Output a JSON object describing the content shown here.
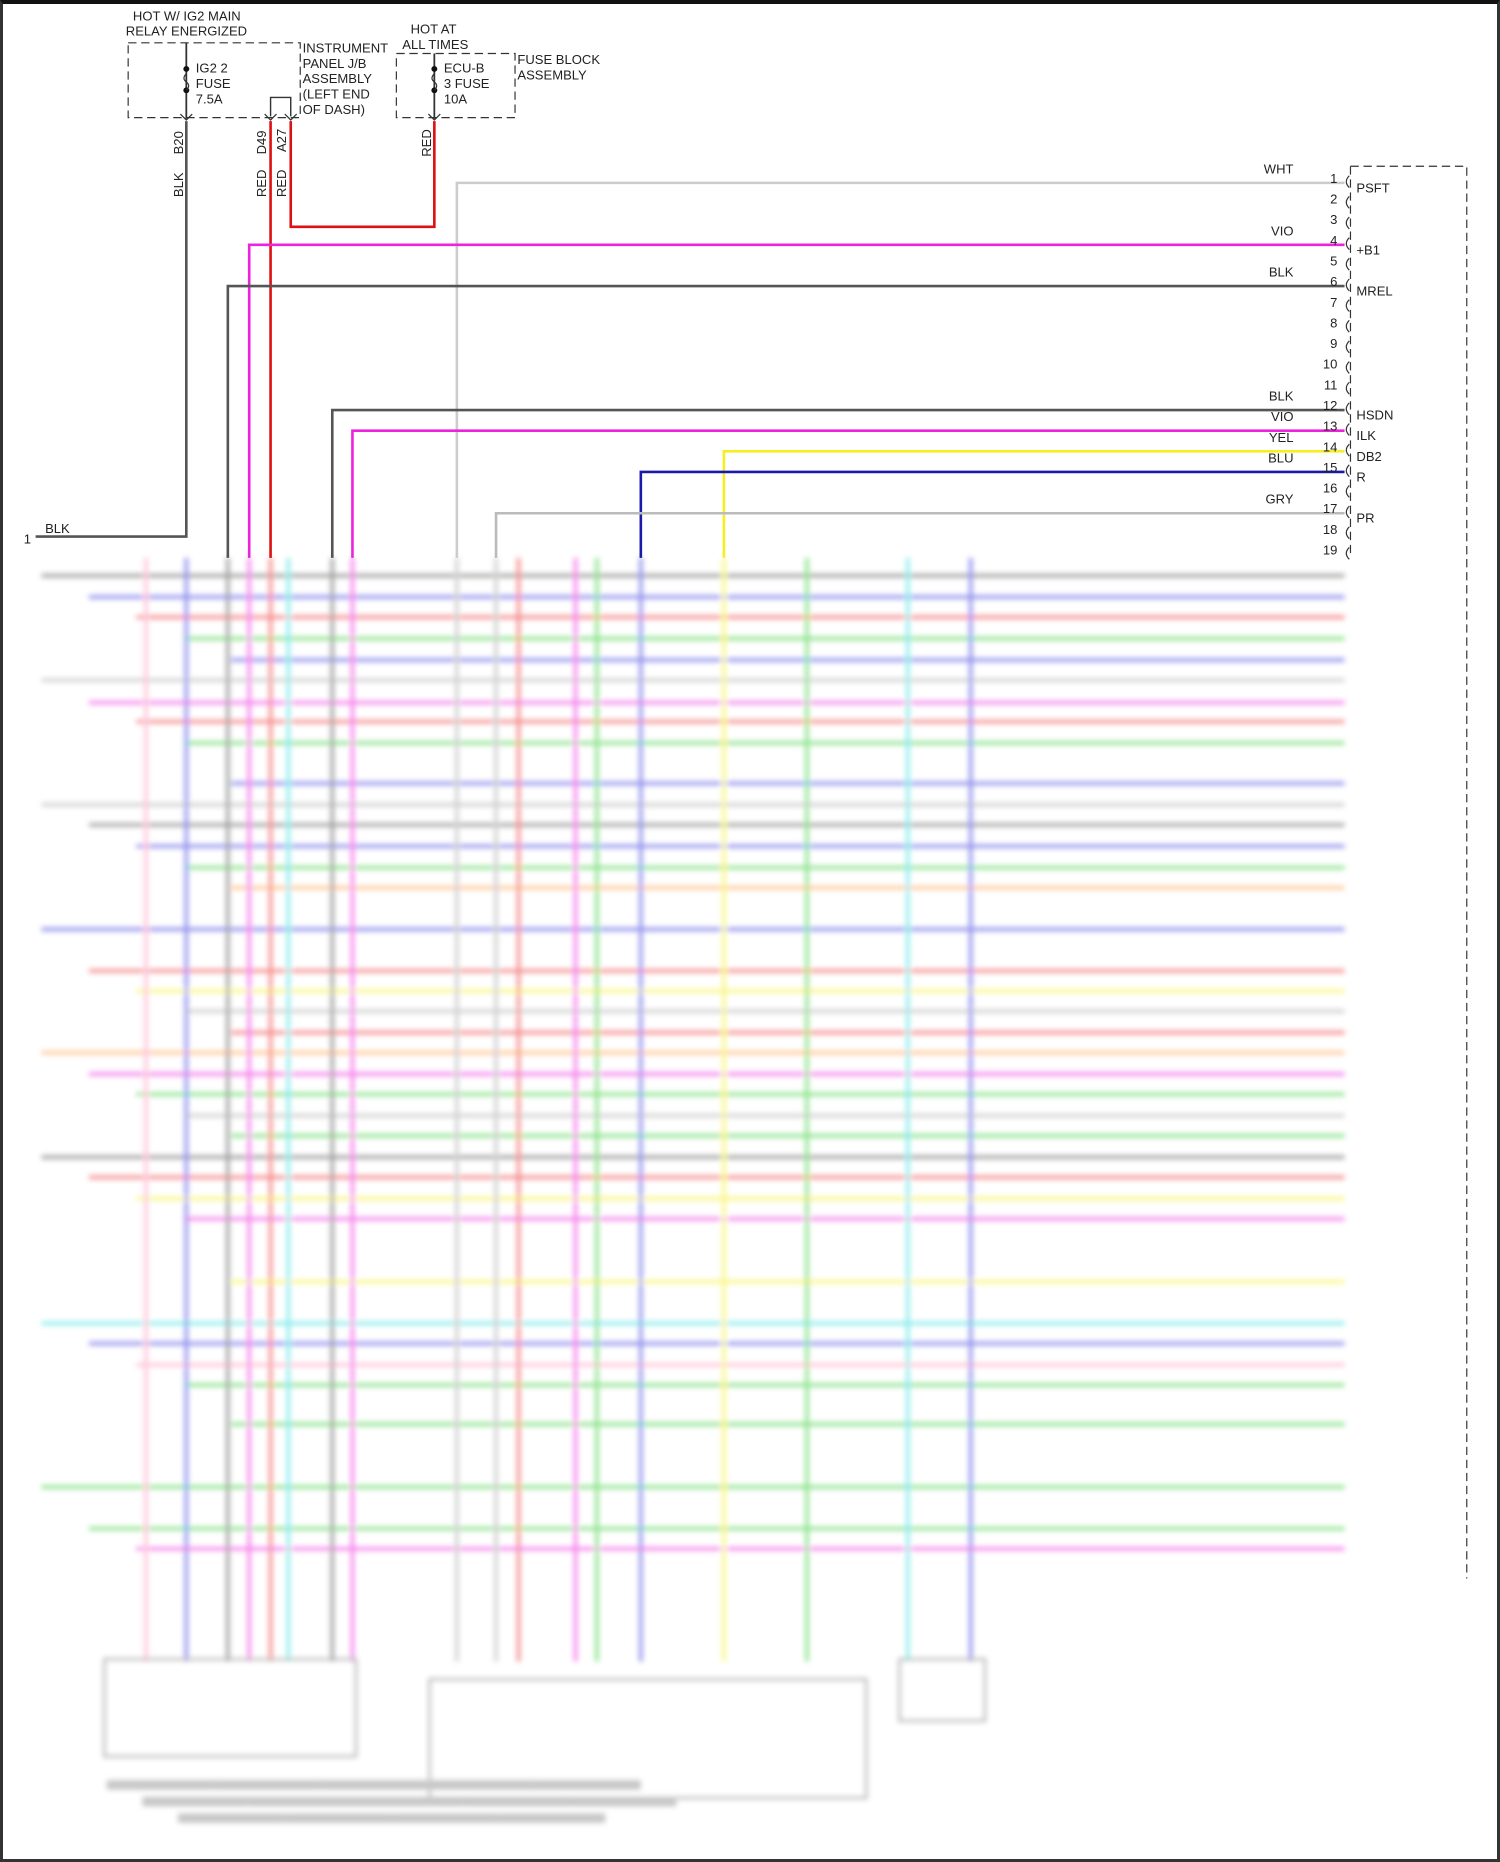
{
  "relay_block": {
    "hot_label": [
      "HOT W/ IG2 MAIN",
      "RELAY ENERGIZED"
    ],
    "fuse": [
      "IG2 2",
      "FUSE",
      "7.5A"
    ],
    "assembly": [
      "INSTRUMENT",
      "PANEL J/B",
      "ASSEMBLY",
      "(LEFT END",
      "OF DASH)"
    ],
    "terminals": [
      "B20",
      "D49",
      "A27"
    ],
    "wires": [
      "BLK",
      "RED",
      "RED"
    ]
  },
  "fuse_block": {
    "hot_label": [
      "HOT AT",
      "ALL TIMES"
    ],
    "fuse": [
      "ECU-B",
      "3 FUSE",
      "10A"
    ],
    "assembly": [
      "FUSE BLOCK",
      "ASSEMBLY"
    ],
    "wire": "RED"
  },
  "ground_pin": {
    "num": "1",
    "wire": "BLK"
  },
  "ecu_pins": [
    {
      "num": "1",
      "wire": "WHT",
      "label": "PSFT",
      "color": "#cccccc"
    },
    {
      "num": "2",
      "wire": "",
      "label": ""
    },
    {
      "num": "3",
      "wire": "",
      "label": ""
    },
    {
      "num": "4",
      "wire": "VIO",
      "label": "+B1",
      "color": "#ee22dd"
    },
    {
      "num": "5",
      "wire": "",
      "label": ""
    },
    {
      "num": "6",
      "wire": "BLK",
      "label": "MREL",
      "color": "#555555"
    },
    {
      "num": "7",
      "wire": "",
      "label": ""
    },
    {
      "num": "8",
      "wire": "",
      "label": ""
    },
    {
      "num": "9",
      "wire": "",
      "label": ""
    },
    {
      "num": "10",
      "wire": "",
      "label": ""
    },
    {
      "num": "11",
      "wire": "",
      "label": ""
    },
    {
      "num": "12",
      "wire": "BLK",
      "label": "HSDN",
      "color": "#555555"
    },
    {
      "num": "13",
      "wire": "VIO",
      "label": "ILK",
      "color": "#ee22dd"
    },
    {
      "num": "14",
      "wire": "YEL",
      "label": "DB2",
      "color": "#f4f020"
    },
    {
      "num": "15",
      "wire": "BLU",
      "label": "R",
      "color": "#1a1aaa"
    },
    {
      "num": "16",
      "wire": "",
      "label": ""
    },
    {
      "num": "17",
      "wire": "GRY",
      "label": "PR",
      "color": "#bbbbbb"
    },
    {
      "num": "18",
      "wire": "",
      "label": ""
    },
    {
      "num": "19",
      "wire": "",
      "label": ""
    }
  ],
  "colors": {
    "red": "#dd1111",
    "blk": "#555555",
    "vio": "#ee22dd",
    "yel": "#f4f020",
    "blu": "#1a1aaa",
    "gry": "#bbbbbb",
    "wht": "#cccccc"
  }
}
